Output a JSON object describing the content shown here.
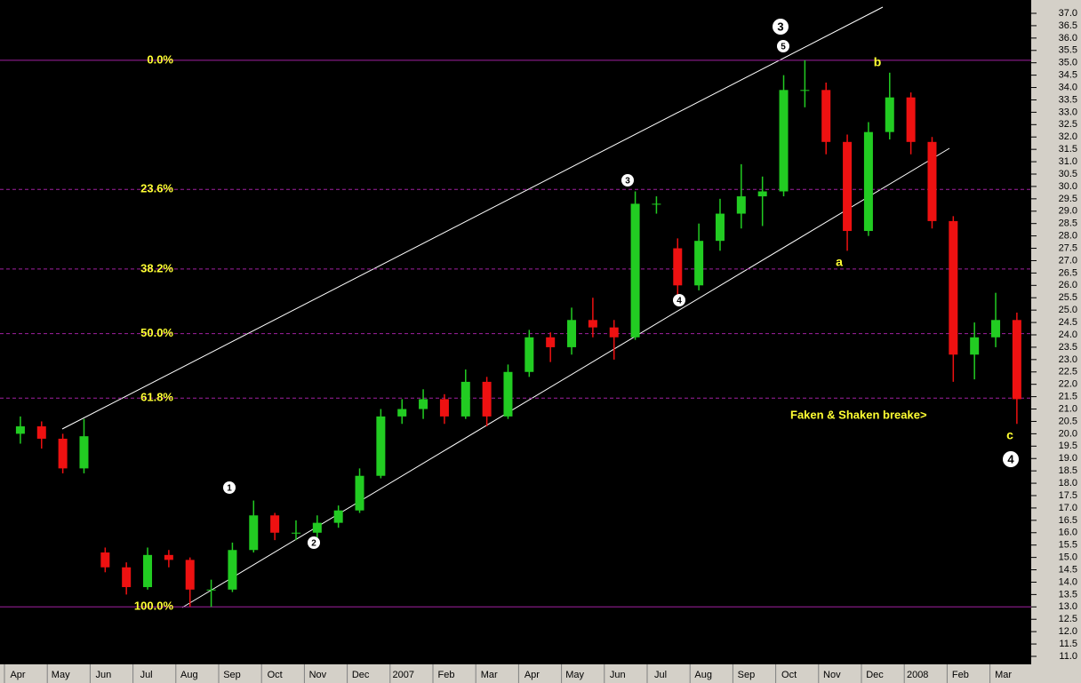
{
  "chart_data": {
    "type": "candlestick",
    "ohlc": [
      [
        20.0,
        20.7,
        19.6,
        20.3
      ],
      [
        20.3,
        20.5,
        19.4,
        19.8
      ],
      [
        19.8,
        20.0,
        18.4,
        18.6
      ],
      [
        18.6,
        20.6,
        18.4,
        19.9
      ],
      [
        15.2,
        15.4,
        14.4,
        14.6
      ],
      [
        14.6,
        14.8,
        13.5,
        13.8
      ],
      [
        13.8,
        15.4,
        13.7,
        15.1
      ],
      [
        15.1,
        15.3,
        14.6,
        14.9
      ],
      [
        14.9,
        15.0,
        13.0,
        13.7
      ],
      [
        13.7,
        14.1,
        13.0,
        13.7
      ],
      [
        13.7,
        15.6,
        13.6,
        15.3
      ],
      [
        15.3,
        17.3,
        15.2,
        16.7
      ],
      [
        16.7,
        16.8,
        15.7,
        16.0
      ],
      [
        16.0,
        16.5,
        15.7,
        16.0
      ],
      [
        16.0,
        16.7,
        15.8,
        16.4
      ],
      [
        16.4,
        17.1,
        16.2,
        16.9
      ],
      [
        16.9,
        18.6,
        16.8,
        18.3
      ],
      [
        18.3,
        21.0,
        18.2,
        20.7
      ],
      [
        20.7,
        21.4,
        20.4,
        21.0
      ],
      [
        21.0,
        21.8,
        20.6,
        21.4
      ],
      [
        21.4,
        21.6,
        20.4,
        20.7
      ],
      [
        20.7,
        22.6,
        20.6,
        22.1
      ],
      [
        22.1,
        22.3,
        20.3,
        20.7
      ],
      [
        20.7,
        22.8,
        20.6,
        22.5
      ],
      [
        22.5,
        24.2,
        22.3,
        23.9
      ],
      [
        23.9,
        24.1,
        22.9,
        23.5
      ],
      [
        23.5,
        25.1,
        23.2,
        24.6
      ],
      [
        24.6,
        25.5,
        23.9,
        24.3
      ],
      [
        24.3,
        24.6,
        23.0,
        23.9
      ],
      [
        23.9,
        29.8,
        23.8,
        29.3
      ],
      [
        29.3,
        29.6,
        28.9,
        29.3
      ],
      [
        27.5,
        27.9,
        25.5,
        26.0
      ],
      [
        26.0,
        28.5,
        25.8,
        27.8
      ],
      [
        27.8,
        29.5,
        27.4,
        28.9
      ],
      [
        28.9,
        30.9,
        28.3,
        29.6
      ],
      [
        29.6,
        30.4,
        28.4,
        29.8
      ],
      [
        29.8,
        34.5,
        29.6,
        33.9
      ],
      [
        33.9,
        35.1,
        33.2,
        33.9
      ],
      [
        33.9,
        34.2,
        31.3,
        31.8
      ],
      [
        31.8,
        32.1,
        27.4,
        28.2
      ],
      [
        28.2,
        32.6,
        28.0,
        32.2
      ],
      [
        32.2,
        34.6,
        31.9,
        33.6
      ],
      [
        33.6,
        33.8,
        31.3,
        31.8
      ],
      [
        31.8,
        32.0,
        28.3,
        28.6
      ],
      [
        28.6,
        28.8,
        22.1,
        23.2
      ],
      [
        23.2,
        24.5,
        22.2,
        23.9
      ],
      [
        23.9,
        25.7,
        23.5,
        24.6
      ],
      [
        24.6,
        24.9,
        20.4,
        21.4
      ]
    ],
    "up_color": "#22cc22",
    "down_color": "#ee1111",
    "categories": [
      "Apr",
      "May",
      "Jun",
      "Jul",
      "Aug",
      "Sep",
      "Oct",
      "Nov",
      "Dec",
      "2007",
      "Feb",
      "Mar",
      "Apr",
      "May",
      "Jun",
      "Jul",
      "Aug",
      "Sep",
      "Oct",
      "Nov",
      "Dec",
      "2008",
      "Feb",
      "Mar"
    ],
    "ylim": [
      11.0,
      37.0
    ],
    "yticks": [
      {
        "value": 37.0,
        "label": "37.0"
      },
      {
        "value": 36.5,
        "label": "36.5"
      },
      {
        "value": 36.0,
        "label": "36.0"
      },
      {
        "value": 35.5,
        "label": "35.5"
      },
      {
        "value": 35.0,
        "label": "35.0"
      },
      {
        "value": 34.5,
        "label": "34.5"
      },
      {
        "value": 34.0,
        "label": "34.0"
      },
      {
        "value": 33.5,
        "label": "33.5"
      },
      {
        "value": 33.0,
        "label": "33.0"
      },
      {
        "value": 32.5,
        "label": "32.5"
      },
      {
        "value": 32.0,
        "label": "32.0"
      },
      {
        "value": 31.5,
        "label": "31.5"
      },
      {
        "value": 31.0,
        "label": "31.0"
      },
      {
        "value": 30.5,
        "label": "30.5"
      },
      {
        "value": 30.0,
        "label": "30.0"
      },
      {
        "value": 29.5,
        "label": "29.5"
      },
      {
        "value": 29.0,
        "label": "29.0"
      },
      {
        "value": 28.5,
        "label": "28.5"
      },
      {
        "value": 28.0,
        "label": "28.0"
      },
      {
        "value": 27.5,
        "label": "27.5"
      },
      {
        "value": 27.0,
        "label": "27.0"
      },
      {
        "value": 26.5,
        "label": "26.5"
      },
      {
        "value": 26.0,
        "label": "26.0"
      },
      {
        "value": 25.5,
        "label": "25.5"
      },
      {
        "value": 25.0,
        "label": "25.0"
      },
      {
        "value": 24.5,
        "label": "24.5"
      },
      {
        "value": 24.0,
        "label": "24.0"
      },
      {
        "value": 23.5,
        "label": "23.5"
      },
      {
        "value": 23.0,
        "label": "23.0"
      },
      {
        "value": 22.5,
        "label": "22.5"
      },
      {
        "value": 22.0,
        "label": "22.0"
      },
      {
        "value": 21.5,
        "label": "21.5"
      },
      {
        "value": 21.0,
        "label": "21.0"
      },
      {
        "value": 20.5,
        "label": "20.5"
      },
      {
        "value": 20.0,
        "label": "20.0"
      },
      {
        "value": 19.5,
        "label": "19.5"
      },
      {
        "value": 19.0,
        "label": "19.0"
      },
      {
        "value": 18.5,
        "label": "18.5"
      },
      {
        "value": 18.0,
        "label": "18.0"
      },
      {
        "value": 17.5,
        "label": "17.5"
      },
      {
        "value": 17.0,
        "label": "17.0"
      },
      {
        "value": 16.5,
        "label": "16.5"
      },
      {
        "value": 16.0,
        "label": "16.0"
      },
      {
        "value": 15.5,
        "label": "15.5"
      },
      {
        "value": 15.0,
        "label": "15.0"
      },
      {
        "value": 14.5,
        "label": "14.5"
      },
      {
        "value": 14.0,
        "label": "14.0"
      },
      {
        "value": 13.5,
        "label": "13.5"
      },
      {
        "value": 13.0,
        "label": "13.0"
      },
      {
        "value": 12.5,
        "label": "12.5"
      },
      {
        "value": 12.0,
        "label": "12.0"
      },
      {
        "value": 11.5,
        "label": "11.5"
      },
      {
        "value": 11.0,
        "label": "11.0"
      }
    ],
    "fib_levels": [
      {
        "label": "0.0%",
        "value": 35.1,
        "dashed": false
      },
      {
        "label": "23.6%",
        "value": 29.88,
        "dashed": true
      },
      {
        "label": "38.2%",
        "value": 26.66,
        "dashed": true
      },
      {
        "label": "50.0%",
        "value": 24.05,
        "dashed": true
      },
      {
        "label": "61.8%",
        "value": 21.44,
        "dashed": true
      },
      {
        "label": "100.0%",
        "value": 13.0,
        "dashed": false
      }
    ],
    "fib_color": "#a020a0",
    "wave_labels": [
      "1",
      "2",
      "3",
      "4",
      "5",
      "3",
      "4"
    ],
    "abc_labels": [
      "a",
      "b",
      "c"
    ],
    "note": "Faken & Shaken breake>"
  }
}
